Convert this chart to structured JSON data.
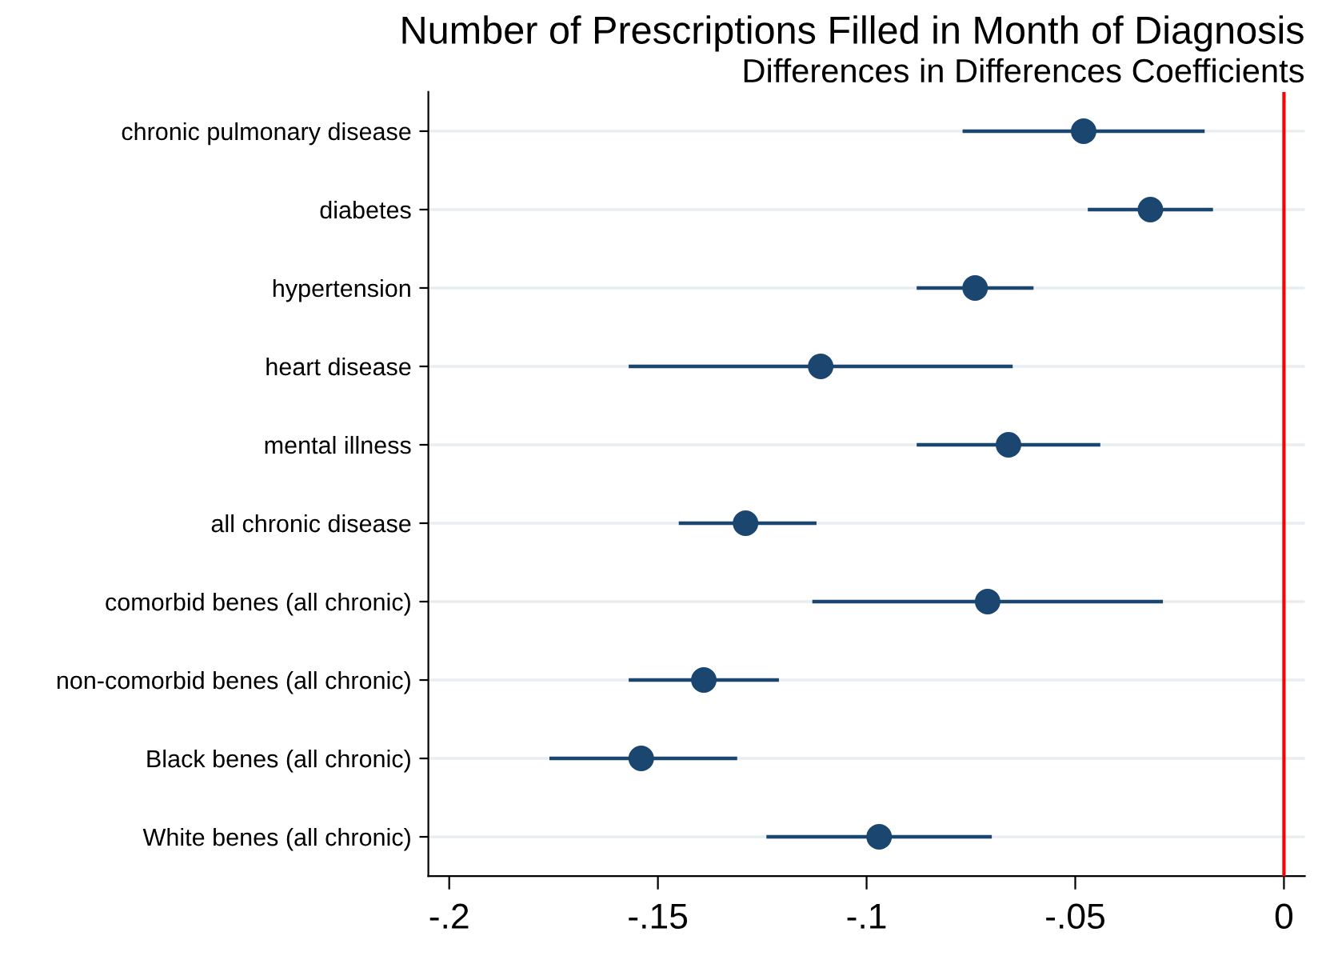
{
  "chart_data": {
    "type": "scatter",
    "orientation": "horizontal",
    "title": "Number of Prescriptions Filled in Month of Diagnosis",
    "subtitle": "Differences in Differences Coefficients",
    "categories": [
      "chronic pulmonary disease",
      "diabetes",
      "hypertension",
      "heart disease",
      "mental illness",
      "all chronic disease",
      "comorbid benes (all chronic)",
      "non-comorbid benes (all chronic)",
      "Black benes (all chronic)",
      "White benes (all chronic)"
    ],
    "values": [
      -0.048,
      -0.032,
      -0.074,
      -0.111,
      -0.066,
      -0.129,
      -0.071,
      -0.139,
      -0.154,
      -0.097
    ],
    "errors": [
      [
        -0.077,
        -0.019
      ],
      [
        -0.047,
        -0.017
      ],
      [
        -0.088,
        -0.06
      ],
      [
        -0.157,
        -0.065
      ],
      [
        -0.088,
        -0.044
      ],
      [
        -0.145,
        -0.112
      ],
      [
        -0.113,
        -0.029
      ],
      [
        -0.157,
        -0.121
      ],
      [
        -0.176,
        -0.131
      ],
      [
        -0.124,
        -0.07
      ]
    ],
    "color": "#1a4670",
    "marker": "circle",
    "xlim": [
      -0.205,
      0.005
    ],
    "xticks": [
      {
        "value": -0.2,
        "label": "-.2"
      },
      {
        "value": -0.15,
        "label": "-.15"
      },
      {
        "value": -0.1,
        "label": "-.1"
      },
      {
        "value": -0.05,
        "label": "-.05"
      },
      0
    ],
    "ref_lines": [
      {
        "axis": "x",
        "value": 0,
        "color": "#ff0000"
      }
    ],
    "grid": "y"
  }
}
